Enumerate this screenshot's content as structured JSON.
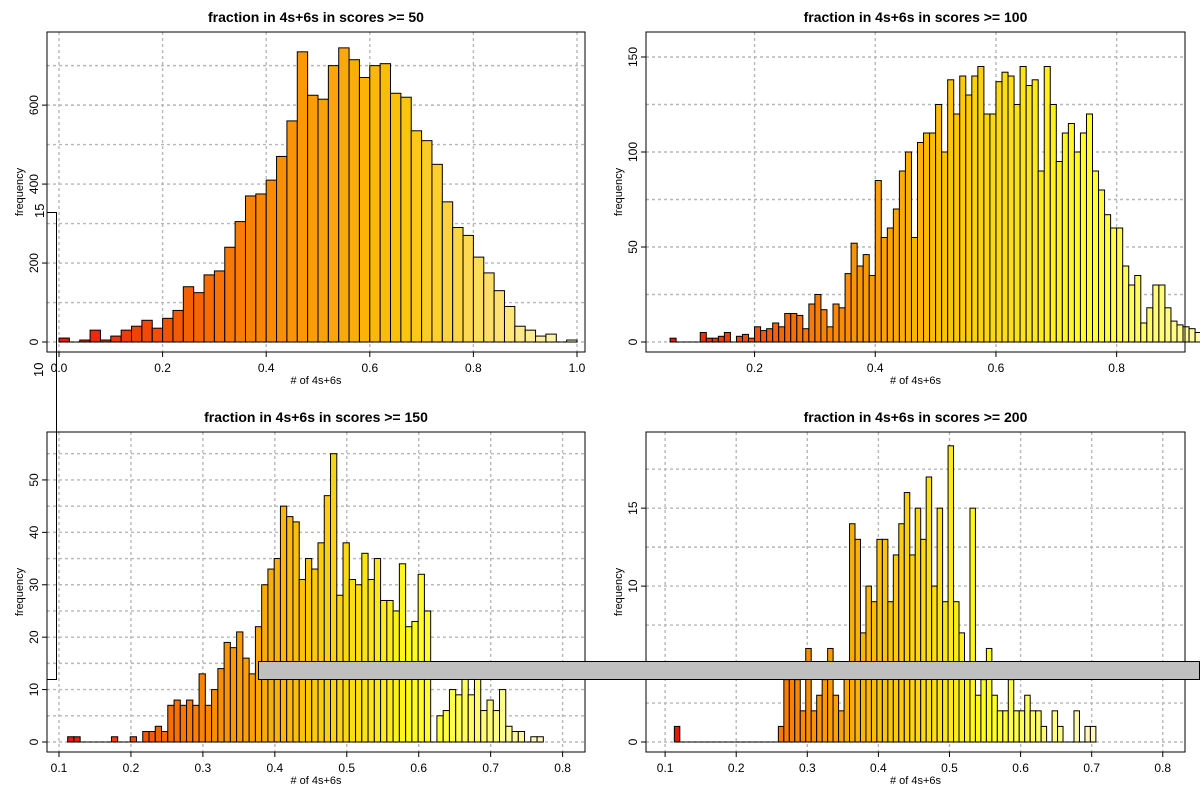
{
  "chart_data": [
    {
      "type": "bar",
      "title": "fraction in 4s+6s in scores >= 50",
      "xlabel": "# of 4s+6s",
      "ylabel": "frequency",
      "xlim": [
        0,
        1
      ],
      "ylim": [
        0,
        770
      ],
      "xticks": [
        0.0,
        0.2,
        0.4,
        0.6,
        0.8,
        1.0
      ],
      "xtick_labels": [
        "0.0",
        "0.2",
        "0.4",
        "0.6",
        "0.8",
        "1.0"
      ],
      "yticks": [
        0,
        200,
        400,
        600
      ],
      "bin_width": 0.02,
      "x_start": 0.0,
      "values": [
        10,
        0,
        5,
        30,
        5,
        15,
        30,
        40,
        55,
        35,
        60,
        80,
        140,
        125,
        170,
        180,
        240,
        305,
        370,
        375,
        410,
        470,
        560,
        735,
        625,
        615,
        700,
        745,
        715,
        670,
        700,
        705,
        630,
        620,
        535,
        510,
        450,
        355,
        290,
        270,
        215,
        175,
        130,
        90,
        40,
        30,
        15,
        20,
        0,
        5
      ],
      "grid": true,
      "colors": [
        "#e8190c",
        "#f97a04",
        "#fbc40a",
        "#fff9c0"
      ]
    },
    {
      "type": "bar",
      "title": "fraction in 4s+6s in scores >= 100",
      "xlabel": "# of 4s+6s",
      "ylabel": "frequency",
      "xlim": [
        0.04,
        0.9
      ],
      "ylim": [
        0,
        160
      ],
      "xticks": [
        0.2,
        0.4,
        0.6,
        0.8
      ],
      "xtick_labels": [
        "0.2",
        "0.4",
        "0.6",
        "0.8"
      ],
      "yticks": [
        0,
        50,
        100,
        150
      ],
      "bin_width": 0.01,
      "x_start": 0.06,
      "values": [
        2,
        0,
        0,
        0,
        0,
        5,
        2,
        2,
        3,
        5,
        0,
        3,
        4,
        2,
        8,
        6,
        7,
        10,
        8,
        15,
        15,
        14,
        7,
        20,
        25,
        17,
        8,
        20,
        18,
        36,
        52,
        40,
        46,
        35,
        85,
        55,
        60,
        70,
        90,
        100,
        55,
        105,
        110,
        110,
        125,
        100,
        138,
        120,
        140,
        130,
        140,
        145,
        120,
        120,
        137,
        142,
        140,
        125,
        145,
        135,
        138,
        90,
        145,
        125,
        95,
        110,
        115,
        100,
        110,
        120,
        90,
        80,
        67,
        60,
        60,
        40,
        30,
        35,
        10,
        18,
        30,
        30,
        18,
        11,
        9,
        8,
        7,
        5,
        2,
        1,
        0,
        1
      ],
      "grid": true,
      "colors": [
        "#e8190c",
        "#f97a04",
        "#fbc40a",
        "#ffff20",
        "#fff9c0"
      ]
    },
    {
      "type": "bar",
      "title": "fraction in 4s+6s in scores >= 150",
      "xlabel": "# of 4s+6s",
      "ylabel": "frequency",
      "xlim": [
        0.1,
        0.82
      ],
      "ylim": [
        0,
        58
      ],
      "xticks": [
        0.1,
        0.2,
        0.3,
        0.4,
        0.5,
        0.6,
        0.7,
        0.8
      ],
      "xtick_labels": [
        "0.1",
        "0.2",
        "0.3",
        "0.4",
        "0.5",
        "0.6",
        "0.7",
        "0.8"
      ],
      "yticks": [
        0,
        10,
        20,
        30,
        40,
        50
      ],
      "bin_width": 0.0087,
      "x_start": 0.112,
      "values": [
        1,
        1,
        0,
        0,
        0,
        0,
        0,
        1,
        0,
        0,
        1,
        0,
        2,
        2,
        3,
        2,
        7,
        8,
        7,
        8,
        7,
        13,
        7,
        10,
        14,
        19,
        18,
        21,
        16,
        13,
        22,
        30,
        33,
        35,
        45,
        43,
        42,
        31,
        35,
        33,
        38,
        47,
        55,
        28,
        38,
        31,
        30,
        36,
        31,
        35,
        27,
        27,
        25,
        34,
        22,
        23,
        32,
        25,
        0,
        5,
        6,
        10,
        9,
        14,
        9,
        13,
        6,
        8,
        6,
        10,
        3,
        2,
        2,
        0,
        1,
        1
      ],
      "grid": true,
      "colors": [
        "#e8190c",
        "#f97a04",
        "#fbc40a",
        "#ffff20",
        "#fff9c0"
      ]
    },
    {
      "type": "bar",
      "title": "fraction in 4s+6s in scores >= 200",
      "xlabel": "# of 4s+6s",
      "ylabel": "frequency",
      "xlim": [
        0.09,
        0.82
      ],
      "ylim": [
        0,
        19.5
      ],
      "xticks": [
        0.1,
        0.2,
        0.3,
        0.4,
        0.5,
        0.6,
        0.7,
        0.8
      ],
      "xtick_labels": [
        "0.1",
        "0.2",
        "0.3",
        "0.4",
        "0.5",
        "0.6",
        "0.7",
        "0.8"
      ],
      "yticks": [
        0,
        5,
        10,
        15
      ],
      "bin_width": 0.0077,
      "x_start": 0.113,
      "values": [
        1,
        0,
        0,
        0,
        0,
        0,
        0,
        0,
        0,
        0,
        0,
        0,
        0,
        0,
        0,
        0,
        0,
        0,
        0,
        1,
        4,
        5,
        4,
        2,
        6,
        2,
        3,
        4,
        6,
        3,
        2,
        5,
        14,
        13,
        7,
        10,
        9,
        13,
        13,
        9,
        12,
        14,
        16,
        12,
        15,
        13,
        17,
        10,
        15,
        9,
        19,
        9,
        7,
        5,
        15,
        3,
        4,
        6,
        3,
        2,
        2,
        4,
        2,
        2,
        3,
        2,
        2,
        1,
        0,
        2,
        1,
        0,
        0,
        2,
        0,
        1,
        1
      ],
      "grid": true,
      "colors": [
        "#e8190c",
        "#f97a04",
        "#fbc40a",
        "#ffff20",
        "#fff9c0"
      ]
    }
  ],
  "stray_labels": [
    "15",
    "10"
  ]
}
